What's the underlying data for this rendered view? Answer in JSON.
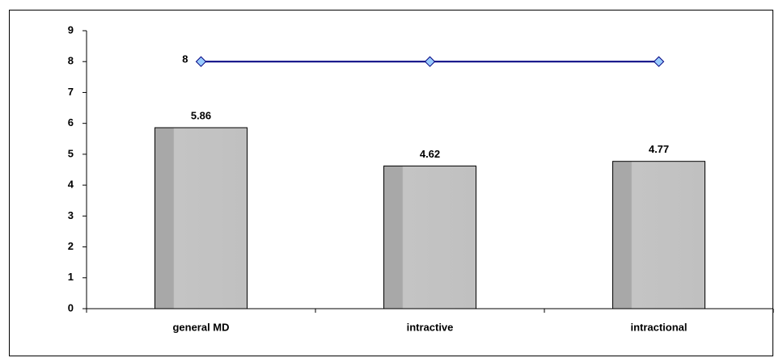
{
  "chart_data": {
    "type": "combo",
    "categories": [
      "general MD",
      "intractive",
      "intractional"
    ],
    "series": [
      {
        "type": "bar",
        "color": "#c0c0c0",
        "values": [
          5.86,
          4.62,
          4.77
        ]
      },
      {
        "type": "line",
        "color": "#000080",
        "marker_color": "#99ccff",
        "values": [
          8,
          8,
          8
        ],
        "value_labels": [
          "8",
          null,
          null
        ]
      }
    ],
    "ylim": [
      0,
      9
    ],
    "yticks": [
      0,
      1,
      2,
      3,
      4,
      5,
      6,
      7,
      8,
      9
    ],
    "grid": false
  }
}
